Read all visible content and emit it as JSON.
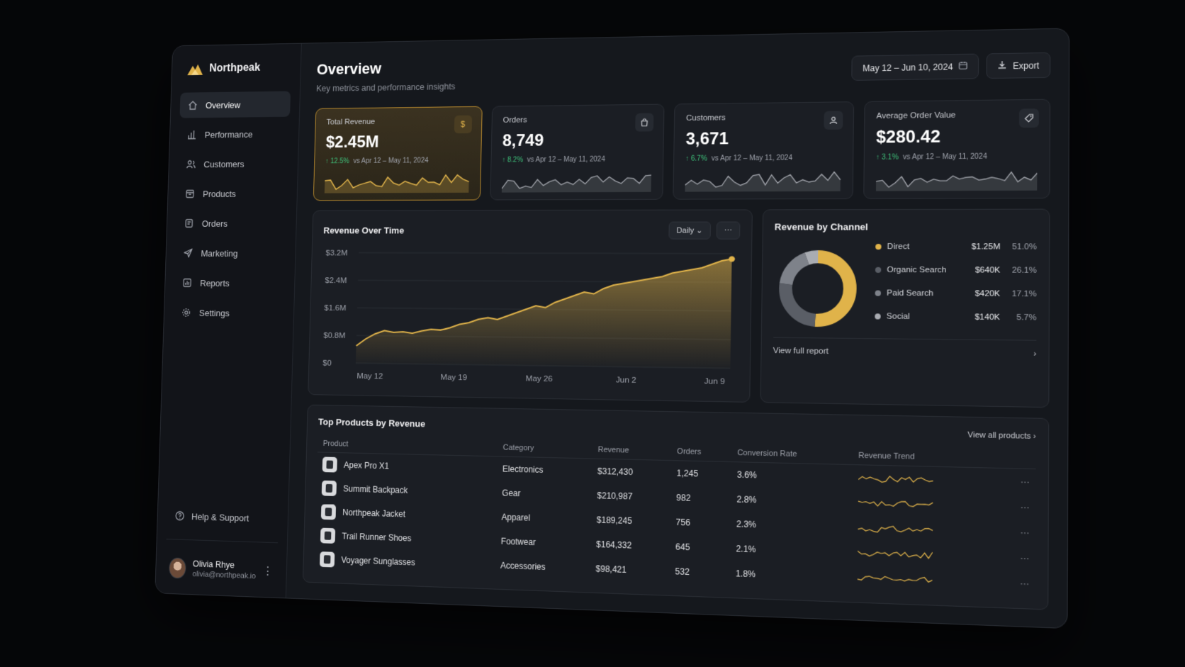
{
  "brand": {
    "name": "Northpeak"
  },
  "nav": [
    {
      "label": "Overview",
      "icon": "home-icon",
      "active": true
    },
    {
      "label": "Performance",
      "icon": "bar-chart-icon"
    },
    {
      "label": "Customers",
      "icon": "users-icon"
    },
    {
      "label": "Products",
      "icon": "box-icon"
    },
    {
      "label": "Orders",
      "icon": "orders-icon"
    },
    {
      "label": "Marketing",
      "icon": "send-icon"
    },
    {
      "label": "Reports",
      "icon": "reports-icon"
    },
    {
      "label": "Settings",
      "icon": "gear-icon"
    }
  ],
  "help": {
    "label": "Help & Support"
  },
  "user": {
    "name": "Olivia Rhye",
    "email": "olivia@northpeak.io"
  },
  "header": {
    "title": "Overview",
    "subtitle": "Key metrics and performance insights",
    "date_range": "May 12 – Jun 10, 2024",
    "export_label": "Export"
  },
  "kpis": [
    {
      "label": "Total Revenue",
      "value": "$2.45M",
      "delta": "12.5%",
      "compare": "vs Apr 12 – May 11, 2024",
      "icon": "dollar-icon"
    },
    {
      "label": "Orders",
      "value": "8,749",
      "delta": "8.2%",
      "compare": "vs Apr 12 – May 11, 2024",
      "icon": "shopping-bag-icon"
    },
    {
      "label": "Customers",
      "value": "3,671",
      "delta": "6.7%",
      "compare": "vs Apr 12 – May 11, 2024",
      "icon": "user-icon"
    },
    {
      "label": "Average Order Value",
      "value": "$280.42",
      "delta": "3.1%",
      "compare": "vs Apr 12 – May 11, 2024",
      "icon": "tag-icon"
    }
  ],
  "revenue_chart": {
    "title": "Revenue Over Time",
    "granularity": "Daily",
    "accent": "#e0b34a"
  },
  "chart_data": {
    "type": "area",
    "title": "Revenue Over Time",
    "x_ticks": [
      "May 12",
      "May 19",
      "May 26",
      "Jun 2",
      "Jun 9"
    ],
    "y_ticks": [
      "$3.2M",
      "$2.4M",
      "$1.6M",
      "$0.8M",
      "$0"
    ],
    "ylim": [
      0,
      3.2
    ],
    "y_unit": "$M",
    "series": [
      {
        "values": [
          0.5,
          0.7,
          0.85,
          0.95,
          0.9,
          0.92,
          0.88,
          0.95,
          1.0,
          0.98,
          1.05,
          1.15,
          1.2,
          1.3,
          1.35,
          1.3,
          1.4,
          1.5,
          1.6,
          1.7,
          1.65,
          1.8,
          1.9,
          2.0,
          2.1,
          2.05,
          2.2,
          2.3,
          2.35,
          2.4,
          2.45,
          2.5,
          2.55,
          2.65,
          2.7,
          2.75,
          2.8,
          2.9,
          3.0,
          3.05
        ]
      }
    ]
  },
  "channels": {
    "title": "Revenue by Channel",
    "view_label": "View full report",
    "items": [
      {
        "name": "Direct",
        "value": "$1.25M",
        "pct": "51.0%",
        "share": 51.0,
        "color": "#e0b34a"
      },
      {
        "name": "Organic Search",
        "value": "$640K",
        "pct": "26.1%",
        "share": 26.1,
        "color": "#5a5e66"
      },
      {
        "name": "Paid Search",
        "value": "$420K",
        "pct": "17.1%",
        "share": 17.1,
        "color": "#7e828a"
      },
      {
        "name": "Social",
        "value": "$140K",
        "pct": "5.7%",
        "share": 5.7,
        "color": "#a9acb2"
      }
    ]
  },
  "products": {
    "title": "Top Products by Revenue",
    "view_all": "View all products",
    "columns": [
      "Product",
      "Category",
      "Revenue",
      "Orders",
      "Conversion Rate",
      "Revenue Trend"
    ],
    "rows": [
      {
        "name": "Apex Pro X1",
        "category": "Electronics",
        "revenue": "$312,430",
        "orders": "1,245",
        "conversion": "3.6%"
      },
      {
        "name": "Summit Backpack",
        "category": "Gear",
        "revenue": "$210,987",
        "orders": "982",
        "conversion": "2.8%"
      },
      {
        "name": "Northpeak Jacket",
        "category": "Apparel",
        "revenue": "$189,245",
        "orders": "756",
        "conversion": "2.3%"
      },
      {
        "name": "Trail Runner Shoes",
        "category": "Footwear",
        "revenue": "$164,332",
        "orders": "645",
        "conversion": "2.1%"
      },
      {
        "name": "Voyager Sunglasses",
        "category": "Accessories",
        "revenue": "$98,421",
        "orders": "532",
        "conversion": "1.8%"
      }
    ]
  }
}
